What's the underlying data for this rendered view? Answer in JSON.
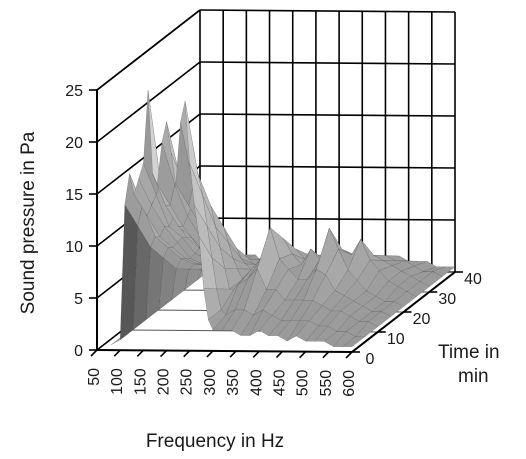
{
  "chart_data": {
    "type": "surface",
    "title": "",
    "xlabel": "Frequency in Hz",
    "ylabel": "Sound pressure in Pa",
    "zlabel_lines": [
      "Time in",
      "min"
    ],
    "x_ticks": [
      "50",
      "100",
      "150",
      "200",
      "250",
      "300",
      "350",
      "400",
      "450",
      "500",
      "550",
      "600"
    ],
    "y_ticks": [
      "0",
      "5",
      "10",
      "15",
      "20",
      "25"
    ],
    "z_ticks": [
      "0",
      "10",
      "20",
      "30",
      "40"
    ],
    "xlim": [
      50,
      600
    ],
    "ylim": [
      0,
      25
    ],
    "zlim": [
      0,
      40
    ],
    "grid": true,
    "x": [
      80,
      100,
      110,
      120,
      130,
      140,
      150,
      160,
      170,
      180,
      190,
      200,
      210,
      220,
      230,
      240,
      250,
      260,
      270,
      280,
      290,
      300,
      320,
      340,
      360,
      380,
      400,
      420,
      440,
      460,
      480,
      500,
      520,
      540,
      560,
      580,
      600
    ],
    "time": [
      0,
      5,
      10,
      15,
      20,
      25,
      30,
      35,
      40
    ],
    "pressure": [
      [
        0.5,
        1.0,
        14.0,
        17.0,
        15.0,
        16.5,
        18.0,
        25.0,
        17.0,
        16.0,
        20.0,
        22.0,
        19.0,
        16.0,
        22.0,
        24.0,
        18.0,
        14.0,
        11.0,
        6.0,
        3.0,
        2.0,
        2.0,
        2.0,
        1.5,
        1.5,
        2.0,
        1.5,
        1.5,
        1.0,
        1.5,
        1.0,
        1.0,
        1.0,
        0.5,
        0.5,
        0.5
      ],
      [
        0.5,
        1.0,
        11.0,
        13.0,
        12.0,
        13.0,
        14.0,
        15.0,
        13.0,
        13.0,
        15.0,
        16.0,
        15.0,
        13.0,
        15.0,
        16.0,
        14.0,
        11.0,
        8.0,
        5.0,
        3.0,
        2.5,
        3.0,
        3.0,
        2.5,
        3.0,
        2.5,
        2.0,
        2.0,
        2.0,
        2.0,
        1.5,
        1.5,
        1.0,
        1.0,
        0.5,
        0.5
      ],
      [
        0.5,
        1.0,
        8.0,
        9.0,
        9.0,
        10.0,
        10.0,
        11.0,
        10.0,
        10.0,
        11.0,
        12.0,
        11.0,
        10.0,
        11.0,
        12.0,
        10.0,
        8.0,
        6.0,
        4.0,
        4.0,
        4.5,
        5.0,
        6.0,
        4.0,
        4.0,
        3.0,
        3.0,
        3.0,
        3.0,
        2.5,
        2.0,
        2.0,
        1.5,
        1.0,
        1.0,
        0.5
      ],
      [
        0.5,
        1.0,
        6.0,
        7.0,
        7.0,
        7.5,
        8.0,
        8.0,
        8.0,
        7.5,
        8.0,
        9.0,
        8.0,
        7.0,
        8.0,
        9.0,
        7.5,
        6.0,
        5.0,
        4.0,
        4.5,
        5.0,
        6.0,
        9.0,
        6.0,
        5.0,
        4.0,
        4.0,
        5.0,
        4.5,
        3.0,
        2.5,
        2.0,
        1.5,
        1.0,
        1.0,
        0.5
      ],
      [
        0.5,
        1.0,
        4.0,
        5.0,
        5.0,
        5.0,
        5.5,
        6.0,
        5.5,
        5.0,
        5.5,
        6.0,
        5.5,
        5.0,
        5.5,
        6.0,
        5.0,
        4.5,
        4.0,
        3.5,
        4.0,
        4.5,
        5.0,
        7.0,
        5.5,
        4.5,
        6.0,
        5.0,
        8.0,
        6.0,
        4.0,
        3.0,
        2.0,
        1.5,
        1.0,
        1.0,
        0.5
      ],
      [
        0.5,
        1.0,
        3.0,
        3.5,
        3.5,
        3.5,
        4.0,
        4.0,
        4.0,
        3.5,
        4.0,
        4.0,
        4.0,
        3.5,
        4.0,
        4.0,
        3.5,
        3.5,
        3.0,
        3.0,
        3.5,
        3.5,
        4.0,
        5.0,
        4.0,
        3.5,
        4.0,
        4.5,
        5.0,
        4.5,
        6.0,
        4.0,
        3.0,
        2.0,
        1.5,
        1.0,
        0.5
      ],
      [
        0.5,
        1.0,
        2.0,
        2.5,
        2.5,
        2.5,
        3.0,
        3.0,
        3.0,
        2.5,
        3.0,
        3.0,
        3.0,
        2.5,
        3.0,
        3.0,
        2.5,
        2.5,
        2.5,
        2.5,
        2.5,
        2.5,
        3.0,
        3.5,
        3.0,
        3.0,
        3.0,
        3.5,
        3.5,
        3.0,
        3.5,
        3.0,
        2.5,
        2.0,
        1.5,
        1.0,
        0.5
      ],
      [
        0.5,
        1.0,
        1.5,
        2.0,
        2.0,
        2.0,
        2.0,
        2.0,
        2.0,
        2.0,
        2.0,
        2.0,
        2.0,
        2.0,
        2.0,
        2.0,
        2.0,
        2.0,
        2.0,
        2.0,
        2.0,
        2.0,
        2.0,
        2.5,
        2.0,
        2.0,
        2.0,
        2.5,
        2.5,
        2.0,
        2.5,
        2.0,
        2.0,
        1.5,
        1.0,
        1.0,
        0.5
      ],
      [
        0.5,
        0.5,
        1.0,
        1.0,
        1.0,
        1.0,
        1.5,
        1.5,
        1.5,
        1.0,
        1.0,
        1.5,
        1.5,
        1.0,
        1.0,
        1.5,
        1.0,
        1.0,
        1.0,
        1.0,
        1.0,
        1.0,
        1.5,
        1.5,
        1.5,
        1.0,
        1.5,
        1.5,
        1.5,
        1.0,
        1.5,
        1.0,
        1.0,
        1.0,
        0.5,
        0.5,
        0.5
      ]
    ]
  }
}
